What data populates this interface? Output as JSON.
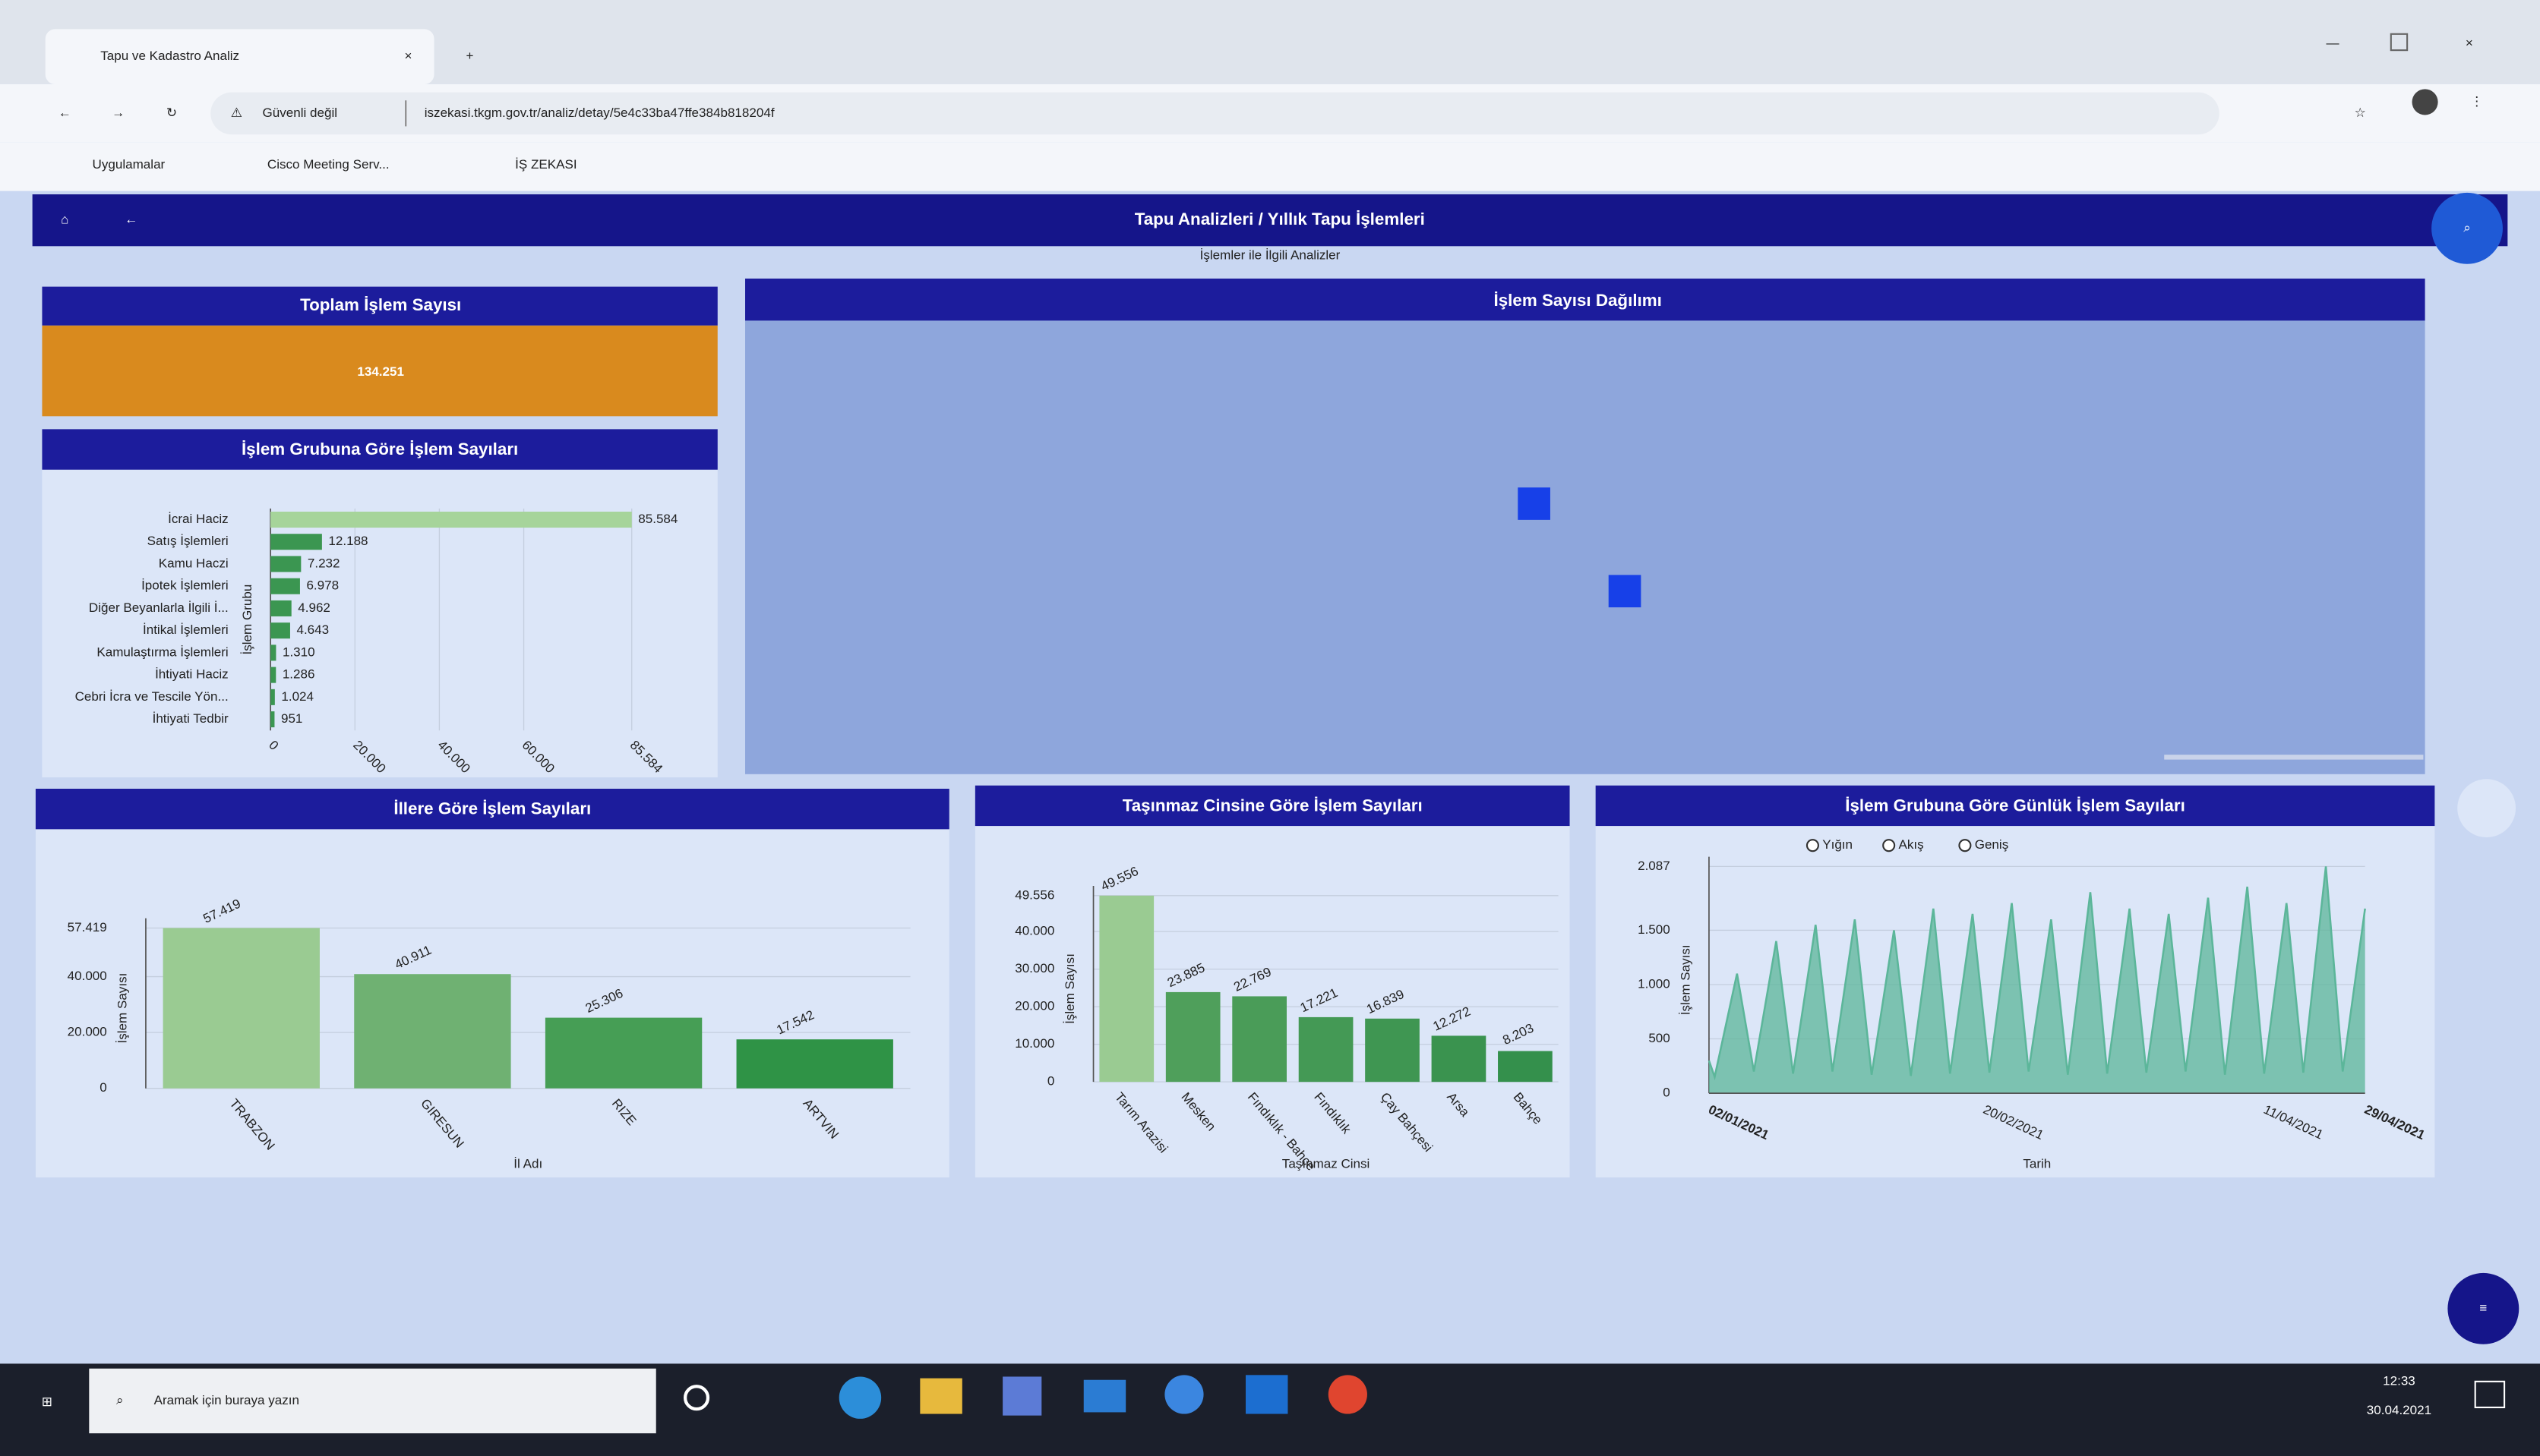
{
  "browser": {
    "tab_title": "Tapu ve Kadastro Analiz",
    "security": "Güvenli değil",
    "url": "iszekasi.tkgm.gov.tr/analiz/detay/5e4c33ba47ffe384b818204f",
    "bookmarks": [
      "Uygulamalar",
      "Cisco Meeting Serv...",
      "İŞ ZEKASI"
    ]
  },
  "header": {
    "title": "Tapu Analizleri / Yıllık Tapu İşlemleri",
    "subtitle": "İşlemler ile İlgili Analizler"
  },
  "kpi": {
    "title": "Toplam İşlem Sayısı",
    "value": "134.251"
  },
  "map_panel": {
    "title": "İşlem Sayısı Dağılımı"
  },
  "chart_data": [
    {
      "type": "hbar",
      "title": "İşlem Grubuna Göre İşlem Sayıları",
      "y_label": "İşlem Grubu",
      "categories": [
        "İcrai Haciz",
        "Satış İşlemleri",
        "Kamu Haczi",
        "İpotek İşlemleri",
        "Diğer Beyanlarla İlgili İ...",
        "İntikal İşlemleri",
        "Kamulaştırma İşlemleri",
        "İhtiyati Haciz",
        "Cebri İcra ve Tescile Yön...",
        "İhtiyati Tedbir"
      ],
      "values": [
        85584,
        12188,
        7232,
        6978,
        4962,
        4643,
        1310,
        1286,
        1024,
        951
      ],
      "value_labels": [
        "85.584",
        "12.188",
        "7.232",
        "6.978",
        "4.962",
        "4.643",
        "1.310",
        "1.286",
        "1.024",
        "951"
      ],
      "colors": [
        "#a6d49a",
        "#3b9651",
        "#3b9651",
        "#3b9651",
        "#3b9651",
        "#3b9651",
        "#3b9651",
        "#3b9651",
        "#3b9651",
        "#3b9651"
      ],
      "xlim": [
        0,
        85584
      ],
      "xticks": [
        0,
        {
          "value": 20000,
          "label": "20.000"
        },
        {
          "value": 40000,
          "label": "40.000"
        },
        {
          "value": 60000,
          "label": "60.000"
        },
        {
          "value": 85584,
          "label": "85.584"
        }
      ],
      "grid": true
    },
    {
      "type": "bar",
      "title": "İllere Göre İşlem Sayıları",
      "x_label": "İl Adı",
      "y_label": "İşlem Sayısı",
      "categories": [
        "TRABZON",
        "GIRESUN",
        "RIZE",
        "ARTVIN"
      ],
      "values": [
        57419,
        40911,
        25306,
        17542
      ],
      "value_labels": [
        "57.419",
        "40.911",
        "25.306",
        "17.542"
      ],
      "colors": [
        "#9acb92",
        "#6fb172",
        "#469e55",
        "#2f9346"
      ],
      "ylim": [
        0,
        57419
      ],
      "yticks": [
        0,
        {
          "value": 20000,
          "label": "20.000"
        },
        {
          "value": 40000,
          "label": "40.000"
        },
        {
          "value": 57419,
          "label": "57.419"
        }
      ],
      "grid": true
    },
    {
      "type": "bar",
      "title": "Taşınmaz Cinsine Göre İşlem Sayıları",
      "x_label": "Taşınmaz Cinsi",
      "y_label": "İşlem Sayısı",
      "categories": [
        "Tarım Arazisi",
        "Mesken",
        "Fındıklık - Bahçe",
        "Fındıklık",
        "Çay Bahçesi",
        "Arsa",
        "Bahçe"
      ],
      "values": [
        49556,
        23885,
        22769,
        17221,
        16839,
        12272,
        8203
      ],
      "value_labels": [
        "49.556",
        "23.885",
        "22.769",
        "17.221",
        "16.839",
        "12.272",
        "8.203"
      ],
      "colors": [
        "#9acb92",
        "#4f9f5b",
        "#4a9c58",
        "#449955",
        "#3f9652",
        "#3a934f",
        "#34904c"
      ],
      "ylim": [
        0,
        49556
      ],
      "yticks": [
        0,
        {
          "value": 10000,
          "label": "10.000"
        },
        {
          "value": 20000,
          "label": "20.000"
        },
        {
          "value": 30000,
          "label": "30.000"
        },
        {
          "value": 40000,
          "label": "40.000"
        },
        {
          "value": 49556,
          "label": "49.556"
        }
      ],
      "grid": true
    },
    {
      "type": "area",
      "title": "İşlem Grubuna Göre Günlük İşlem Sayıları",
      "options": [
        "Yığın",
        "Akış",
        "Geniş"
      ],
      "x_label": "Tarih",
      "y_label": "İşlem Sayısı",
      "x": [
        "2021-01-02",
        "2021-01-03",
        "2021-01-07",
        "2021-01-10",
        "2021-01-14",
        "2021-01-17",
        "2021-01-21",
        "2021-01-24",
        "2021-01-28",
        "2021-01-31",
        "2021-02-04",
        "2021-02-07",
        "2021-02-11",
        "2021-02-14",
        "2021-02-18",
        "2021-02-21",
        "2021-02-25",
        "2021-02-28",
        "2021-03-04",
        "2021-03-07",
        "2021-03-11",
        "2021-03-14",
        "2021-03-18",
        "2021-03-21",
        "2021-03-25",
        "2021-03-28",
        "2021-04-01",
        "2021-04-04",
        "2021-04-08",
        "2021-04-11",
        "2021-04-15",
        "2021-04-18",
        "2021-04-22",
        "2021-04-25",
        "2021-04-29"
      ],
      "values": [
        300,
        150,
        1100,
        200,
        1400,
        180,
        1550,
        200,
        1600,
        170,
        1500,
        160,
        1700,
        180,
        1650,
        190,
        1750,
        200,
        1600,
        170,
        1850,
        180,
        1700,
        190,
        1650,
        200,
        1800,
        170,
        1900,
        180,
        1750,
        190,
        2087,
        200,
        1700
      ],
      "color": "#5cb69a",
      "xlim": [
        "2021-01-02",
        "2021-04-29"
      ],
      "xticks": [
        {
          "value": "2021-01-02",
          "label": "02/01/2021"
        },
        {
          "value": "2021-02-20",
          "label": "20/02/2021"
        },
        {
          "value": "2021-04-11",
          "label": "11/04/2021"
        },
        {
          "value": "2021-04-29",
          "label": "29/04/2021"
        }
      ],
      "ylim": [
        0,
        2087
      ],
      "yticks": [
        0,
        500,
        {
          "value": 1000,
          "label": "1.000"
        },
        {
          "value": 1500,
          "label": "1.500"
        },
        {
          "value": 2087,
          "label": "2.087"
        }
      ],
      "grid": true
    }
  ],
  "taskbar": {
    "search": "Aramak için buraya yazın",
    "time": "12:33",
    "date": "30.04.2021"
  }
}
